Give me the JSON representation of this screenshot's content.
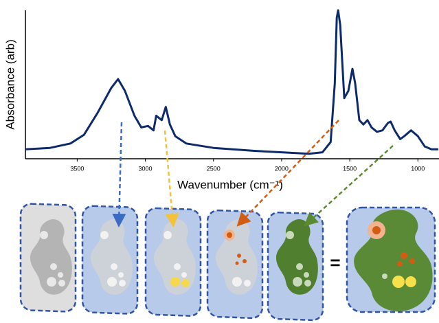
{
  "chart_data": {
    "type": "line",
    "xlabel": "Wavenumber (cm⁻¹)",
    "ylabel": "Absorbance (arb)",
    "color": "#0d2a6b",
    "x": [
      3880,
      3700,
      3550,
      3450,
      3350,
      3250,
      3200,
      3150,
      3080,
      3030,
      2980,
      2940,
      2920,
      2880,
      2850,
      2820,
      2780,
      2700,
      2500,
      2200,
      2000,
      1800,
      1700,
      1640,
      1610,
      1595,
      1585,
      1570,
      1540,
      1510,
      1480,
      1460,
      1430,
      1400,
      1370,
      1340,
      1300,
      1260,
      1220,
      1200,
      1170,
      1130,
      1100,
      1050,
      1000,
      950,
      900,
      850
    ],
    "values": [
      0.05,
      0.06,
      0.09,
      0.15,
      0.3,
      0.47,
      0.53,
      0.45,
      0.28,
      0.2,
      0.21,
      0.18,
      0.28,
      0.25,
      0.34,
      0.22,
      0.14,
      0.09,
      0.06,
      0.04,
      0.03,
      0.02,
      0.03,
      0.1,
      0.5,
      0.95,
      1.0,
      0.9,
      0.4,
      0.45,
      0.6,
      0.5,
      0.25,
      0.22,
      0.25,
      0.2,
      0.17,
      0.18,
      0.23,
      0.24,
      0.18,
      0.12,
      0.14,
      0.18,
      0.14,
      0.07,
      0.05,
      0.05
    ],
    "xlim": [
      3880,
      845
    ],
    "ylim": [
      0,
      1
    ],
    "xticks": [
      3500,
      3000,
      2500,
      2000,
      1500,
      1000
    ]
  },
  "illustration": {
    "equals": "="
  }
}
